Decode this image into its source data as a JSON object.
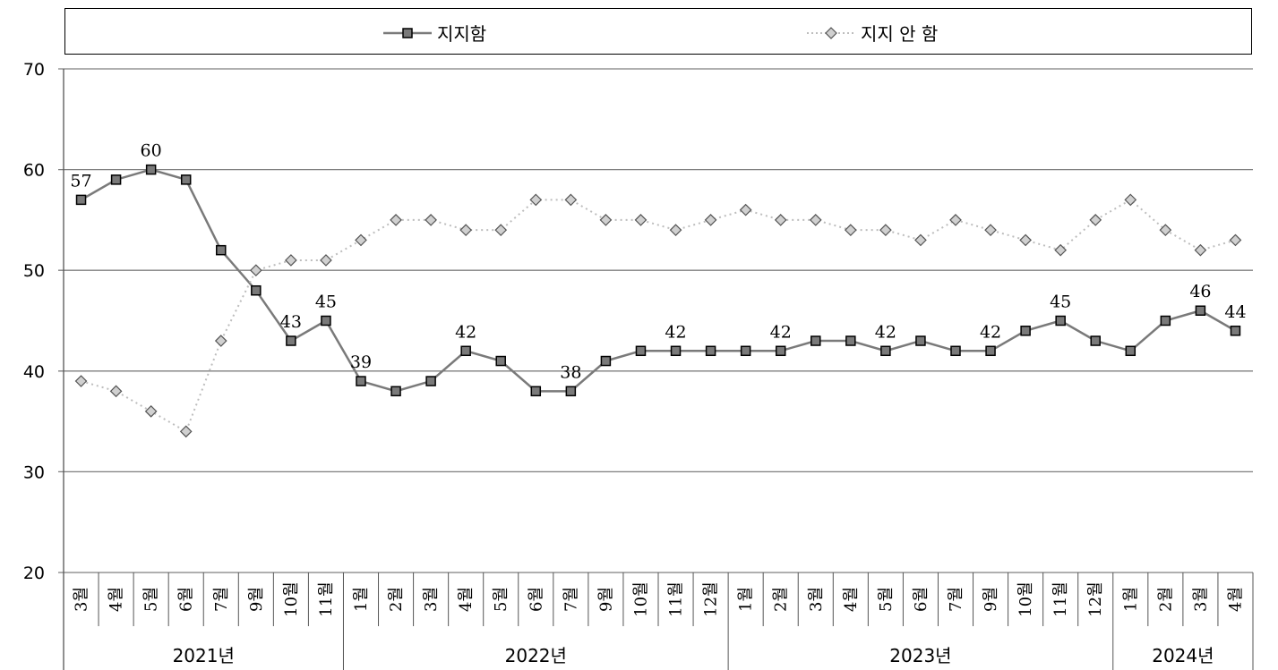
{
  "chart_data": {
    "type": "line",
    "title": "",
    "xlabel": "",
    "ylabel": "",
    "ylim": [
      20,
      70
    ],
    "y_ticks": [
      20,
      30,
      40,
      50,
      60,
      70
    ],
    "grid": "horizontal",
    "legend_position": "top",
    "x_month_labels": [
      "3월",
      "4월",
      "5월",
      "6월",
      "7월",
      "9월",
      "10월",
      "11월",
      "1월",
      "2월",
      "3월",
      "4월",
      "5월",
      "6월",
      "7월",
      "9월",
      "10월",
      "11월",
      "12월",
      "1월",
      "2월",
      "3월",
      "4월",
      "5월",
      "6월",
      "7월",
      "9월",
      "10월",
      "11월",
      "12월",
      "1월",
      "2월",
      "3월",
      "4월"
    ],
    "year_groups": [
      {
        "label": "2021년",
        "count": 8
      },
      {
        "label": "2022년",
        "count": 11
      },
      {
        "label": "2023년",
        "count": 11
      },
      {
        "label": "2024년",
        "count": 4
      }
    ],
    "series": [
      {
        "name": "지지함",
        "color": "#7a7a7a",
        "marker": "square",
        "values": [
          57,
          59,
          60,
          59,
          52,
          48,
          43,
          45,
          39,
          38,
          39,
          42,
          41,
          38,
          38,
          41,
          42,
          42,
          42,
          42,
          42,
          43,
          43,
          42,
          43,
          42,
          42,
          44,
          45,
          43,
          42,
          45,
          46,
          44
        ],
        "labeled_points": [
          0,
          2,
          6,
          7,
          8,
          11,
          14,
          17,
          20,
          23,
          26,
          28,
          32,
          33
        ]
      },
      {
        "name": "지지 안 함",
        "color": "#bdbdbd",
        "marker": "diamond",
        "values": [
          39,
          38,
          36,
          34,
          43,
          50,
          51,
          51,
          53,
          55,
          55,
          54,
          54,
          57,
          57,
          55,
          55,
          54,
          55,
          56,
          55,
          55,
          54,
          54,
          53,
          55,
          54,
          53,
          52,
          55,
          57,
          54,
          52,
          53
        ],
        "labeled_points": []
      }
    ]
  }
}
